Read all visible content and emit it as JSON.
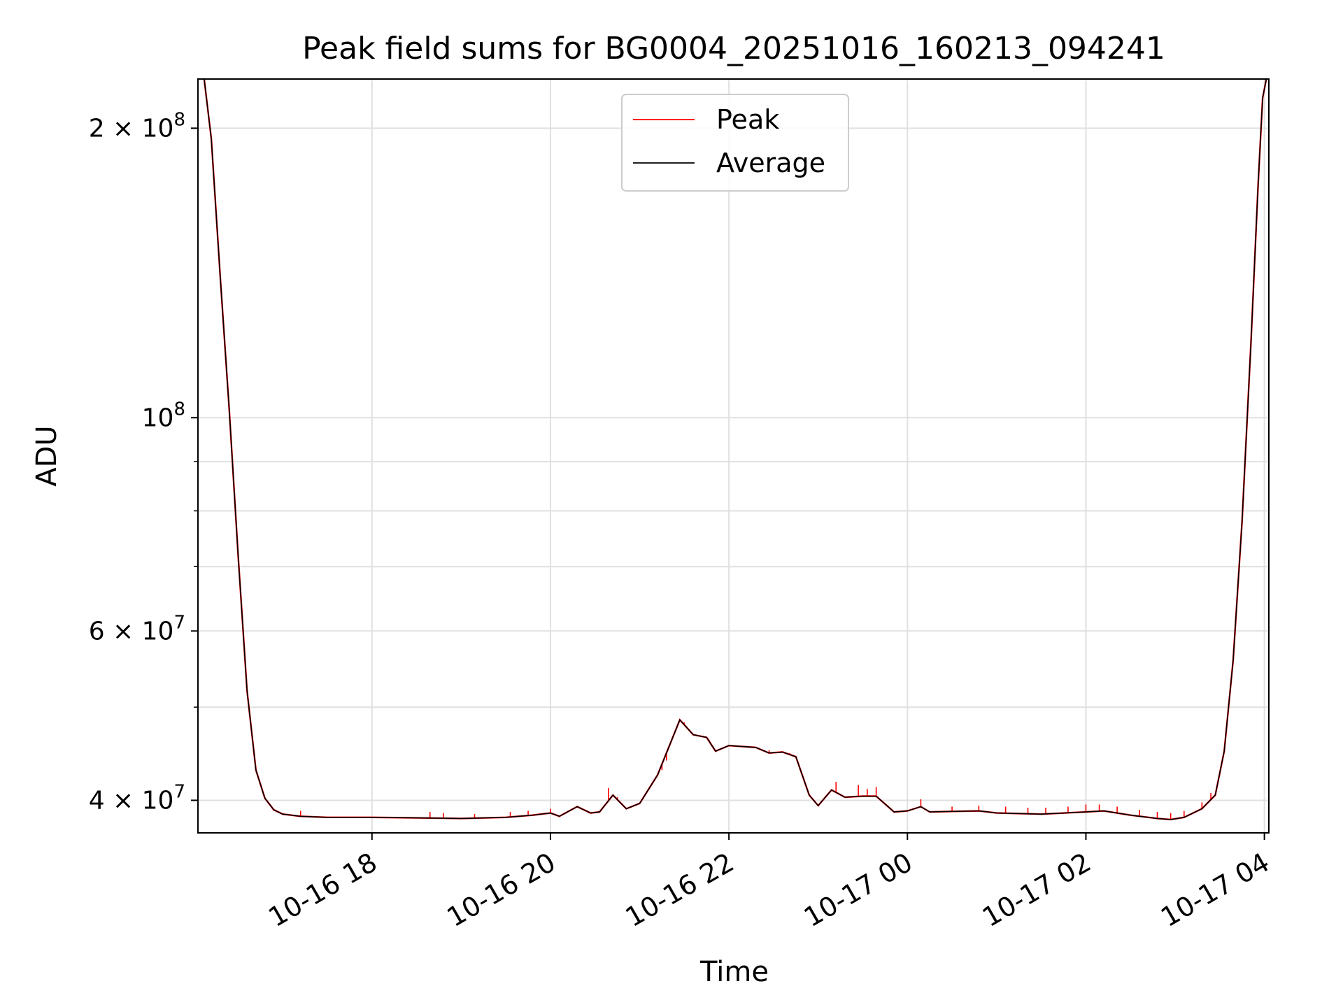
{
  "chart_data": {
    "type": "line",
    "title": "Peak field sums for BG0004_20251016_160213_094241",
    "xlabel": "Time",
    "ylabel": "ADU",
    "yscale": "log",
    "x_unit": "hours since 2025-10-16 00:00",
    "xlim": [
      16.05,
      28.05
    ],
    "ylim": [
      37000000,
      225000000
    ],
    "grid": true,
    "legend_position": "upper center",
    "x_ticks": [
      {
        "value": 18,
        "label": "10-16 18"
      },
      {
        "value": 20,
        "label": "10-16 20"
      },
      {
        "value": 22,
        "label": "10-16 22"
      },
      {
        "value": 24,
        "label": "10-17 00"
      },
      {
        "value": 26,
        "label": "10-17 02"
      },
      {
        "value": 28,
        "label": "10-17 04"
      }
    ],
    "y_ticks": [
      {
        "value": 40000000,
        "base": "4 × 10",
        "exp": "7"
      },
      {
        "value": 60000000,
        "base": "6 × 10",
        "exp": "7"
      },
      {
        "value": 100000000,
        "base": "10",
        "exp": "8"
      },
      {
        "value": 200000000,
        "base": "2 × 10",
        "exp": "8"
      }
    ],
    "y_minor_ticks": [
      50000000,
      70000000,
      80000000,
      90000000
    ],
    "series": [
      {
        "name": "Peak",
        "color": "#ff0000"
      },
      {
        "name": "Average",
        "color": "#000000"
      }
    ],
    "average_points": [
      [
        16.05,
        230000000
      ],
      [
        16.12,
        225000000
      ],
      [
        16.2,
        195000000
      ],
      [
        16.3,
        140000000
      ],
      [
        16.4,
        102000000
      ],
      [
        16.5,
        72000000
      ],
      [
        16.6,
        52000000
      ],
      [
        16.7,
        43000000
      ],
      [
        16.8,
        40200000
      ],
      [
        16.9,
        39100000
      ],
      [
        17.0,
        38700000
      ],
      [
        17.2,
        38500000
      ],
      [
        17.5,
        38400000
      ],
      [
        18.0,
        38400000
      ],
      [
        18.5,
        38350000
      ],
      [
        19.0,
        38300000
      ],
      [
        19.5,
        38400000
      ],
      [
        19.8,
        38600000
      ],
      [
        20.0,
        38800000
      ],
      [
        20.1,
        38500000
      ],
      [
        20.3,
        39400000
      ],
      [
        20.45,
        38800000
      ],
      [
        20.55,
        38900000
      ],
      [
        20.7,
        40500000
      ],
      [
        20.85,
        39200000
      ],
      [
        21.0,
        39700000
      ],
      [
        21.2,
        42500000
      ],
      [
        21.45,
        48500000
      ],
      [
        21.6,
        46800000
      ],
      [
        21.75,
        46500000
      ],
      [
        21.85,
        45000000
      ],
      [
        22.0,
        45600000
      ],
      [
        22.3,
        45400000
      ],
      [
        22.45,
        44800000
      ],
      [
        22.6,
        44900000
      ],
      [
        22.75,
        44400000
      ],
      [
        22.9,
        40500000
      ],
      [
        23.0,
        39500000
      ],
      [
        23.15,
        41000000
      ],
      [
        23.3,
        40300000
      ],
      [
        23.5,
        40400000
      ],
      [
        23.65,
        40400000
      ],
      [
        23.85,
        38900000
      ],
      [
        24.0,
        39000000
      ],
      [
        24.15,
        39400000
      ],
      [
        24.25,
        38900000
      ],
      [
        24.5,
        38950000
      ],
      [
        24.8,
        39000000
      ],
      [
        25.0,
        38800000
      ],
      [
        25.5,
        38700000
      ],
      [
        26.0,
        38900000
      ],
      [
        26.2,
        39000000
      ],
      [
        26.5,
        38600000
      ],
      [
        26.8,
        38300000
      ],
      [
        26.95,
        38200000
      ],
      [
        27.1,
        38400000
      ],
      [
        27.3,
        39200000
      ],
      [
        27.45,
        40500000
      ],
      [
        27.55,
        45000000
      ],
      [
        27.65,
        56000000
      ],
      [
        27.75,
        78000000
      ],
      [
        27.85,
        120000000
      ],
      [
        27.93,
        175000000
      ],
      [
        27.98,
        215000000
      ],
      [
        28.05,
        232000000
      ]
    ],
    "peak_spikes": [
      [
        17.2,
        39000000
      ],
      [
        18.65,
        38900000
      ],
      [
        18.8,
        38800000
      ],
      [
        19.15,
        38700000
      ],
      [
        19.55,
        38900000
      ],
      [
        19.75,
        39000000
      ],
      [
        20.0,
        39200000
      ],
      [
        20.65,
        41200000
      ],
      [
        20.75,
        40300000
      ],
      [
        21.25,
        43000000
      ],
      [
        21.3,
        44000000
      ],
      [
        21.5,
        48200000
      ],
      [
        21.78,
        46200000
      ],
      [
        22.1,
        45600000
      ],
      [
        22.45,
        45100000
      ],
      [
        22.68,
        44800000
      ],
      [
        23.05,
        40000000
      ],
      [
        23.2,
        41800000
      ],
      [
        23.45,
        41500000
      ],
      [
        23.55,
        41100000
      ],
      [
        23.65,
        41300000
      ],
      [
        24.15,
        40100000
      ],
      [
        24.5,
        39400000
      ],
      [
        24.8,
        39500000
      ],
      [
        25.1,
        39400000
      ],
      [
        25.35,
        39300000
      ],
      [
        25.55,
        39300000
      ],
      [
        25.8,
        39400000
      ],
      [
        26.0,
        39600000
      ],
      [
        26.15,
        39600000
      ],
      [
        26.35,
        39400000
      ],
      [
        26.6,
        39100000
      ],
      [
        26.8,
        38900000
      ],
      [
        26.95,
        38800000
      ],
      [
        27.1,
        39000000
      ],
      [
        27.3,
        39800000
      ],
      [
        27.4,
        40700000
      ],
      [
        27.6,
        50000000
      ]
    ]
  }
}
